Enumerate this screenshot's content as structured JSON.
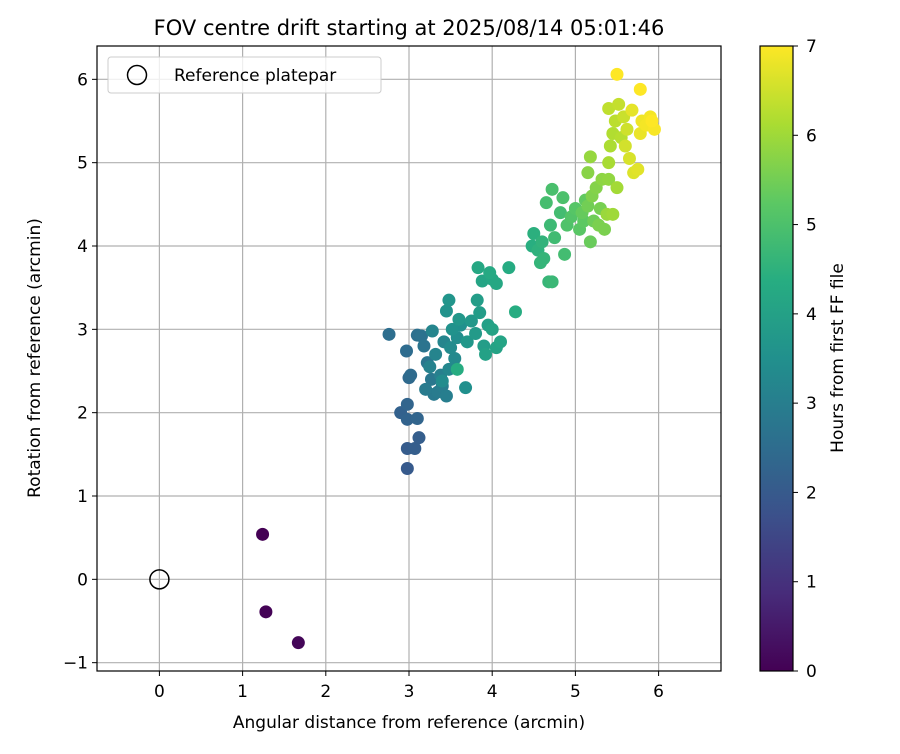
{
  "chart_data": {
    "type": "scatter",
    "title": "FOV centre drift starting at 2025/08/14 05:01:46",
    "xlabel": "Angular distance from reference (arcmin)",
    "ylabel": "Rotation from reference (arcmin)",
    "xlim": [
      -0.75,
      6.75
    ],
    "ylim": [
      -1.1,
      6.4
    ],
    "x_ticks": [
      0,
      1,
      2,
      3,
      4,
      5,
      6
    ],
    "y_ticks": [
      -1,
      0,
      1,
      2,
      3,
      4,
      5,
      6
    ],
    "x_tick_labels": [
      "0",
      "1",
      "2",
      "3",
      "4",
      "5",
      "6"
    ],
    "y_tick_labels": [
      "−1",
      "0",
      "1",
      "2",
      "3",
      "4",
      "5",
      "6"
    ],
    "grid": true,
    "legend": {
      "position": "top-left",
      "entries": [
        "Reference platepar"
      ]
    },
    "reference_point": {
      "x": 0,
      "y": 0,
      "label": "Reference platepar"
    },
    "colorbar": {
      "label": "Hours from first FF file",
      "colormap": "viridis",
      "range": [
        0,
        7
      ],
      "ticks": [
        0,
        1,
        2,
        3,
        4,
        5,
        6,
        7
      ],
      "tick_labels": [
        "0",
        "1",
        "2",
        "3",
        "4",
        "5",
        "6",
        "7"
      ]
    },
    "series": [
      {
        "color_by": "hours_from_first_ff",
        "points": [
          [
            1.24,
            0.54,
            0.0
          ],
          [
            1.28,
            -0.39,
            0.05
          ],
          [
            1.67,
            -0.76,
            0.1
          ],
          [
            2.98,
            1.33,
            2.0
          ],
          [
            2.98,
            1.57,
            2.05
          ],
          [
            3.07,
            1.57,
            2.1
          ],
          [
            3.12,
            1.7,
            2.1
          ],
          [
            2.9,
            2.0,
            2.2
          ],
          [
            2.98,
            1.92,
            2.25
          ],
          [
            3.1,
            1.93,
            2.3
          ],
          [
            2.98,
            2.1,
            2.3
          ],
          [
            3.0,
            2.42,
            2.4
          ],
          [
            3.02,
            2.45,
            2.45
          ],
          [
            2.97,
            2.74,
            2.5
          ],
          [
            2.76,
            2.94,
            2.55
          ],
          [
            3.1,
            2.93,
            2.6
          ],
          [
            3.15,
            2.92,
            2.65
          ],
          [
            3.18,
            2.8,
            2.7
          ],
          [
            3.22,
            2.6,
            2.75
          ],
          [
            3.27,
            2.4,
            2.8
          ],
          [
            3.3,
            2.22,
            2.85
          ],
          [
            3.2,
            2.28,
            2.9
          ],
          [
            3.35,
            2.25,
            2.9
          ],
          [
            3.4,
            2.32,
            2.95
          ],
          [
            3.45,
            2.2,
            3.0
          ],
          [
            3.38,
            2.45,
            3.05
          ],
          [
            3.25,
            2.55,
            3.1
          ],
          [
            3.32,
            2.7,
            3.15
          ],
          [
            3.42,
            2.85,
            3.2
          ],
          [
            3.28,
            2.98,
            3.2
          ],
          [
            3.48,
            2.52,
            3.25
          ],
          [
            3.55,
            2.65,
            3.3
          ],
          [
            3.5,
            2.78,
            3.35
          ],
          [
            3.4,
            2.38,
            3.4
          ],
          [
            3.58,
            2.9,
            3.45
          ],
          [
            3.62,
            3.05,
            3.5
          ],
          [
            3.68,
            2.3,
            3.5
          ],
          [
            3.52,
            3.0,
            3.55
          ],
          [
            3.45,
            3.22,
            3.6
          ],
          [
            3.48,
            3.35,
            3.65
          ],
          [
            3.6,
            3.12,
            3.7
          ],
          [
            3.7,
            2.85,
            3.7
          ],
          [
            3.75,
            3.1,
            3.75
          ],
          [
            3.8,
            2.95,
            3.8
          ],
          [
            3.85,
            3.2,
            3.85
          ],
          [
            3.82,
            3.35,
            3.9
          ],
          [
            3.9,
            2.8,
            3.9
          ],
          [
            3.95,
            3.05,
            3.95
          ],
          [
            3.92,
            2.7,
            4.0
          ],
          [
            4.0,
            3.0,
            4.05
          ],
          [
            4.05,
            2.78,
            4.05
          ],
          [
            4.1,
            2.85,
            4.1
          ],
          [
            3.88,
            3.58,
            4.1
          ],
          [
            4.0,
            3.6,
            4.15
          ],
          [
            4.05,
            3.55,
            4.2
          ],
          [
            3.83,
            3.74,
            4.2
          ],
          [
            3.97,
            3.68,
            4.25
          ],
          [
            4.2,
            3.74,
            4.3
          ],
          [
            4.28,
            3.21,
            4.35
          ],
          [
            3.58,
            2.52,
            4.35
          ],
          [
            4.48,
            4.0,
            4.4
          ],
          [
            4.5,
            4.15,
            4.45
          ],
          [
            4.55,
            3.95,
            4.5
          ],
          [
            4.6,
            4.05,
            4.55
          ],
          [
            4.62,
            3.85,
            4.6
          ],
          [
            4.58,
            3.8,
            4.6
          ],
          [
            4.68,
            3.57,
            4.65
          ],
          [
            4.72,
            3.57,
            4.7
          ],
          [
            4.7,
            4.25,
            4.75
          ],
          [
            4.75,
            4.1,
            4.8
          ],
          [
            4.82,
            4.4,
            4.85
          ],
          [
            4.87,
            3.9,
            4.85
          ],
          [
            4.65,
            4.52,
            4.9
          ],
          [
            4.72,
            4.68,
            4.95
          ],
          [
            4.85,
            4.58,
            5.0
          ],
          [
            4.9,
            4.25,
            5.05
          ],
          [
            4.95,
            4.35,
            5.1
          ],
          [
            5.0,
            4.45,
            5.15
          ],
          [
            5.05,
            4.2,
            5.2
          ],
          [
            5.1,
            4.3,
            5.25
          ],
          [
            5.12,
            4.55,
            5.3
          ],
          [
            5.08,
            4.4,
            5.35
          ],
          [
            5.18,
            4.05,
            5.4
          ],
          [
            5.22,
            4.3,
            5.45
          ],
          [
            5.15,
            4.48,
            5.5
          ],
          [
            5.3,
            4.45,
            5.55
          ],
          [
            5.28,
            4.25,
            5.6
          ],
          [
            5.35,
            4.2,
            5.6
          ],
          [
            5.2,
            4.6,
            5.65
          ],
          [
            5.25,
            4.7,
            5.7
          ],
          [
            5.15,
            4.88,
            5.75
          ],
          [
            5.32,
            4.8,
            5.8
          ],
          [
            5.4,
            4.8,
            5.85
          ],
          [
            5.18,
            5.07,
            5.9
          ],
          [
            5.38,
            4.38,
            5.95
          ],
          [
            5.45,
            4.38,
            6.0
          ],
          [
            5.5,
            4.7,
            6.05
          ],
          [
            5.4,
            5.0,
            6.1
          ],
          [
            5.42,
            5.2,
            6.15
          ],
          [
            5.45,
            5.35,
            6.2
          ],
          [
            5.55,
            5.3,
            6.25
          ],
          [
            5.48,
            5.5,
            6.3
          ],
          [
            5.4,
            5.65,
            6.35
          ],
          [
            5.52,
            5.7,
            6.4
          ],
          [
            5.58,
            5.55,
            6.45
          ],
          [
            5.62,
            5.4,
            6.5
          ],
          [
            5.6,
            5.2,
            6.55
          ],
          [
            5.65,
            5.05,
            6.6
          ],
          [
            5.7,
            4.88,
            6.65
          ],
          [
            5.75,
            4.92,
            6.7
          ],
          [
            5.68,
            5.63,
            6.75
          ],
          [
            5.78,
            5.35,
            6.8
          ],
          [
            5.8,
            5.5,
            6.85
          ],
          [
            5.85,
            5.45,
            6.9
          ],
          [
            5.9,
            5.55,
            6.9
          ],
          [
            5.95,
            5.4,
            6.95
          ],
          [
            5.92,
            5.5,
            7.0
          ],
          [
            5.5,
            6.06,
            7.0
          ],
          [
            5.78,
            5.88,
            7.0
          ]
        ]
      }
    ]
  }
}
